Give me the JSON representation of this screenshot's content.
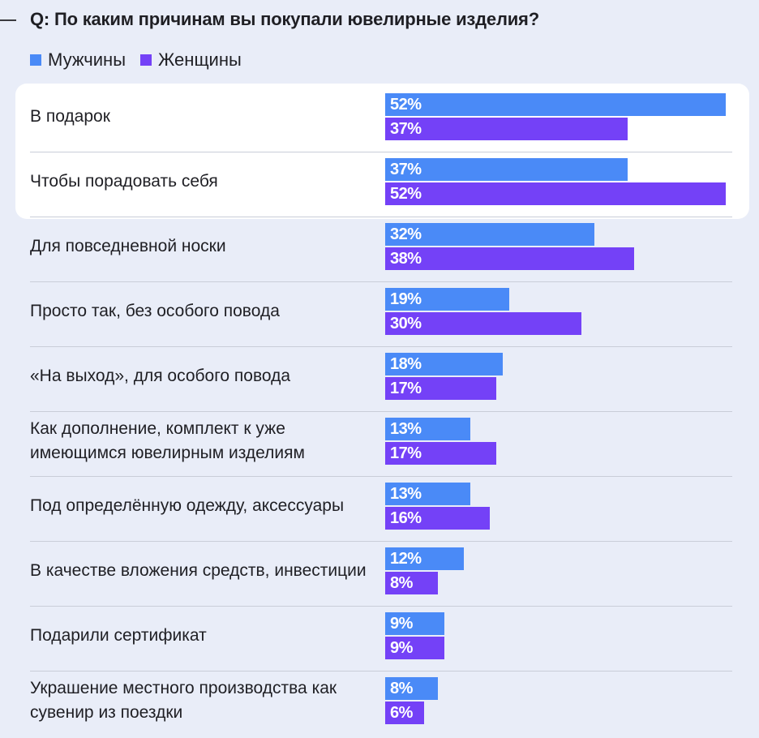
{
  "question": "Q: По каким причинам вы покупали ювелирные изделия?",
  "colors": {
    "men": "#4a8af7",
    "women": "#7441f7"
  },
  "chart_data": {
    "type": "bar",
    "orientation": "horizontal",
    "title": "Q: По каким причинам вы покупали ювелирные изделия?",
    "legend_position": "top-left",
    "value_suffix": "%",
    "xlim": [
      0,
      52
    ],
    "series": [
      {
        "name": "Мужчины",
        "values": [
          52,
          37,
          32,
          19,
          18,
          13,
          13,
          12,
          9,
          8
        ]
      },
      {
        "name": "Женщины",
        "values": [
          37,
          52,
          38,
          30,
          17,
          17,
          16,
          8,
          9,
          6
        ]
      }
    ],
    "categories": [
      "В подарок",
      "Чтобы порадовать себя",
      "Для повседневной носки",
      "Просто так, без особого повода",
      "«На выход», для особого повода",
      "Как дополнение, комплект к уже имеющимся ювелирным изделиям",
      "Под определённую одежду, аксессуары",
      "В качестве вложения средств, инвестиции",
      "Подарили сертификат",
      "Украшение местного производства как сувенир из поездки"
    ],
    "highlighted_categories": [
      0,
      1
    ]
  }
}
